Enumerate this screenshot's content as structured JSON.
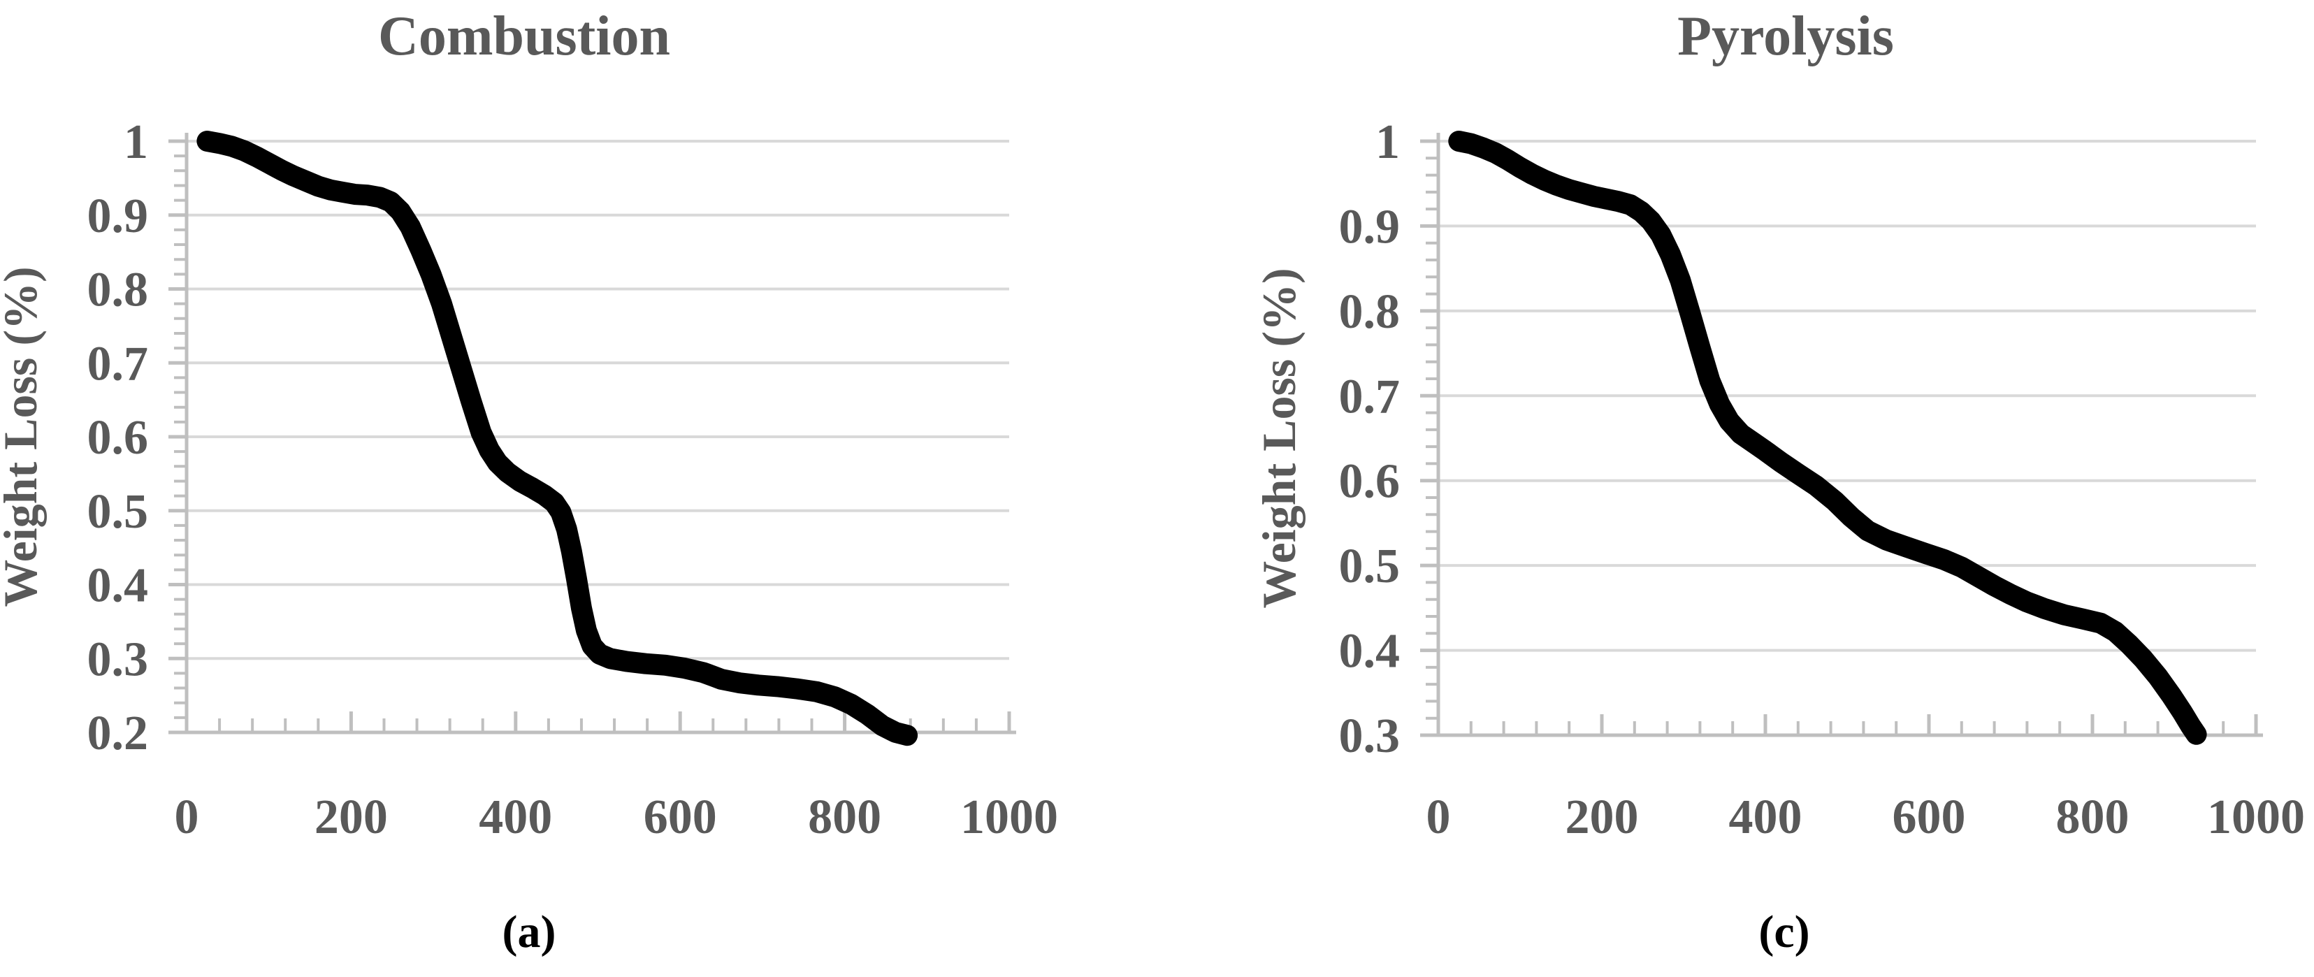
{
  "figure": {
    "background": "#ffffff",
    "text_color": "#595959",
    "sublabel_color": "#000000",
    "axis_color": "#bfbfbf",
    "gridline_color": "#d9d9d9",
    "curve_color": "#000000"
  },
  "chart_data": [
    {
      "type": "line",
      "title": "Combustion",
      "xlabel": "",
      "ylabel": "Weight Loss (%)",
      "sublabel": "(a)",
      "xlim": [
        0,
        1000
      ],
      "ylim": [
        0.2,
        1.0
      ],
      "grid": true,
      "legend": "none",
      "x_major_ticks": [
        0,
        200,
        400,
        600,
        800,
        1000
      ],
      "x_tick_labels": [
        "0",
        "200",
        "400",
        "600",
        "800",
        "1000"
      ],
      "x_minor_step": 40,
      "y_major_step": 0.1,
      "y_minor_step": 0.02,
      "y_tick_labels": [
        "1",
        "0.9",
        "0.8",
        "0.7",
        "0.6",
        "0.5",
        "0.4",
        "0.3",
        "0.2"
      ],
      "series": [
        {
          "points": [
            [
              25,
              1.0
            ],
            [
              40,
              0.997
            ],
            [
              55,
              0.993
            ],
            [
              70,
              0.987
            ],
            [
              85,
              0.979
            ],
            [
              100,
              0.97
            ],
            [
              115,
              0.961
            ],
            [
              130,
              0.953
            ],
            [
              145,
              0.946
            ],
            [
              160,
              0.939
            ],
            [
              175,
              0.934
            ],
            [
              190,
              0.931
            ],
            [
              205,
              0.928
            ],
            [
              220,
              0.927
            ],
            [
              235,
              0.924
            ],
            [
              248,
              0.918
            ],
            [
              260,
              0.905
            ],
            [
              272,
              0.884
            ],
            [
              285,
              0.852
            ],
            [
              297,
              0.82
            ],
            [
              310,
              0.78
            ],
            [
              322,
              0.736
            ],
            [
              334,
              0.692
            ],
            [
              346,
              0.648
            ],
            [
              358,
              0.606
            ],
            [
              368,
              0.582
            ],
            [
              378,
              0.565
            ],
            [
              390,
              0.552
            ],
            [
              405,
              0.54
            ],
            [
              420,
              0.531
            ],
            [
              435,
              0.521
            ],
            [
              447,
              0.511
            ],
            [
              455,
              0.498
            ],
            [
              462,
              0.475
            ],
            [
              468,
              0.445
            ],
            [
              474,
              0.408
            ],
            [
              480,
              0.368
            ],
            [
              486,
              0.338
            ],
            [
              493,
              0.317
            ],
            [
              502,
              0.306
            ],
            [
              515,
              0.3
            ],
            [
              535,
              0.296
            ],
            [
              558,
              0.293
            ],
            [
              582,
              0.291
            ],
            [
              605,
              0.287
            ],
            [
              628,
              0.281
            ],
            [
              650,
              0.272
            ],
            [
              672,
              0.267
            ],
            [
              695,
              0.264
            ],
            [
              718,
              0.262
            ],
            [
              742,
              0.259
            ],
            [
              766,
              0.255
            ],
            [
              788,
              0.248
            ],
            [
              808,
              0.238
            ],
            [
              828,
              0.224
            ],
            [
              846,
              0.209
            ],
            [
              862,
              0.2
            ],
            [
              876,
              0.196
            ]
          ]
        }
      ]
    },
    {
      "type": "line",
      "title": "Pyrolysis",
      "xlabel": "",
      "ylabel": "Weight Loss (%)",
      "sublabel": "(c)",
      "xlim": [
        0,
        1000
      ],
      "ylim": [
        0.3,
        1.0
      ],
      "grid": true,
      "legend": "none",
      "x_major_ticks": [
        0,
        200,
        400,
        600,
        800,
        1000
      ],
      "x_tick_labels": [
        "0",
        "200",
        "400",
        "600",
        "800",
        "1000"
      ],
      "x_minor_step": 40,
      "y_major_step": 0.1,
      "y_minor_step": 0.02,
      "y_tick_labels": [
        "1",
        "0.9",
        "0.8",
        "0.7",
        "0.6",
        "0.5",
        "0.4",
        "0.3"
      ],
      "series": [
        {
          "points": [
            [
              25,
              1.0
            ],
            [
              40,
              0.997
            ],
            [
              55,
              0.992
            ],
            [
              70,
              0.986
            ],
            [
              85,
              0.978
            ],
            [
              100,
              0.969
            ],
            [
              115,
              0.961
            ],
            [
              130,
              0.954
            ],
            [
              145,
              0.948
            ],
            [
              160,
              0.943
            ],
            [
              175,
              0.939
            ],
            [
              190,
              0.935
            ],
            [
              205,
              0.932
            ],
            [
              220,
              0.929
            ],
            [
              235,
              0.925
            ],
            [
              248,
              0.917
            ],
            [
              260,
              0.906
            ],
            [
              272,
              0.89
            ],
            [
              284,
              0.866
            ],
            [
              296,
              0.836
            ],
            [
              308,
              0.797
            ],
            [
              320,
              0.757
            ],
            [
              332,
              0.718
            ],
            [
              344,
              0.69
            ],
            [
              356,
              0.67
            ],
            [
              370,
              0.655
            ],
            [
              385,
              0.645
            ],
            [
              400,
              0.635
            ],
            [
              420,
              0.621
            ],
            [
              440,
              0.608
            ],
            [
              462,
              0.594
            ],
            [
              485,
              0.576
            ],
            [
              505,
              0.557
            ],
            [
              525,
              0.541
            ],
            [
              548,
              0.53
            ],
            [
              572,
              0.522
            ],
            [
              596,
              0.514
            ],
            [
              618,
              0.507
            ],
            [
              640,
              0.498
            ],
            [
              660,
              0.487
            ],
            [
              680,
              0.476
            ],
            [
              700,
              0.466
            ],
            [
              720,
              0.457
            ],
            [
              742,
              0.449
            ],
            [
              765,
              0.442
            ],
            [
              788,
              0.437
            ],
            [
              810,
              0.432
            ],
            [
              828,
              0.422
            ],
            [
              845,
              0.407
            ],
            [
              862,
              0.39
            ],
            [
              880,
              0.369
            ],
            [
              897,
              0.346
            ],
            [
              910,
              0.327
            ],
            [
              920,
              0.311
            ],
            [
              927,
              0.301
            ]
          ]
        }
      ]
    }
  ]
}
